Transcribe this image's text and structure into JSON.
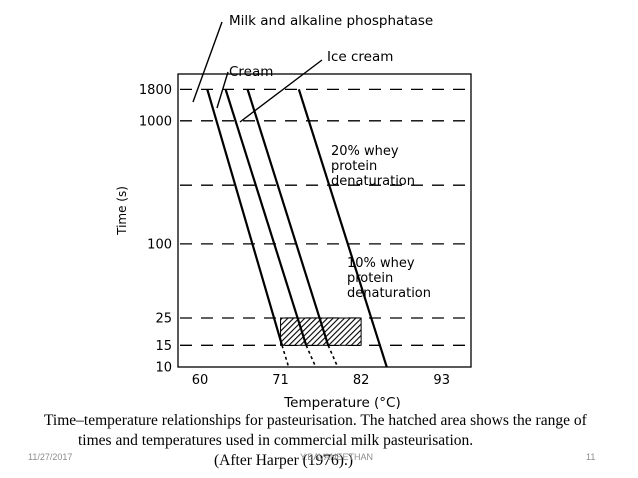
{
  "chart_data": {
    "type": "line",
    "x_axis": {
      "label": "Temperature (°C)",
      "ticks": [
        60,
        71,
        82,
        93
      ],
      "range": [
        57,
        97
      ]
    },
    "y_axis": {
      "label": "Time (s)",
      "scale": "log",
      "tick_labels": [
        "1800",
        "1000",
        "100",
        "25",
        "15",
        "10"
      ],
      "tick_values": [
        1800,
        1000,
        100,
        25,
        15,
        10
      ],
      "dashed_gridlines": [
        1800,
        1000,
        300,
        100,
        25,
        15
      ],
      "range": [
        10,
        2400
      ]
    },
    "series": [
      {
        "name": "Milk and alkaline phosphatase",
        "points": [
          [
            61,
            1800
          ],
          [
            71.2,
            15
          ],
          [
            72.1,
            10
          ]
        ]
      },
      {
        "name": "Cream",
        "points": [
          [
            63.5,
            1800
          ],
          [
            74.5,
            15
          ],
          [
            75.8,
            10
          ]
        ]
      },
      {
        "name": "Ice cream",
        "points": [
          [
            66.5,
            1800
          ],
          [
            77.5,
            15
          ],
          [
            78.8,
            10
          ]
        ]
      },
      {
        "name": "20% whey protein denaturation",
        "points": [
          [
            73.5,
            1800
          ],
          [
            85.5,
            10
          ]
        ]
      }
    ],
    "annotations": [
      {
        "text": "Milk and alkaline phosphatase",
        "series": 0
      },
      {
        "text": "Cream",
        "series": 1
      },
      {
        "text": "Ice cream",
        "series": 2
      },
      {
        "text": [
          "20% whey",
          "protein",
          "denaturation"
        ]
      },
      {
        "text": [
          "10% whey",
          "protein",
          "denaturation"
        ]
      }
    ],
    "hatched_region": {
      "x": [
        71,
        82
      ],
      "y": [
        15,
        25
      ]
    }
  },
  "caption": {
    "line1": "Time–temperature relationships for pasteurisation. The hatched area shows the range of",
    "line2": "times and temperatures used in commercial milk pasteurisation.",
    "line3": "(After Harper (1976).)"
  },
  "footer": {
    "date": "11/27/2017",
    "author": "Y.BAVANEETHAN",
    "page": "11"
  }
}
